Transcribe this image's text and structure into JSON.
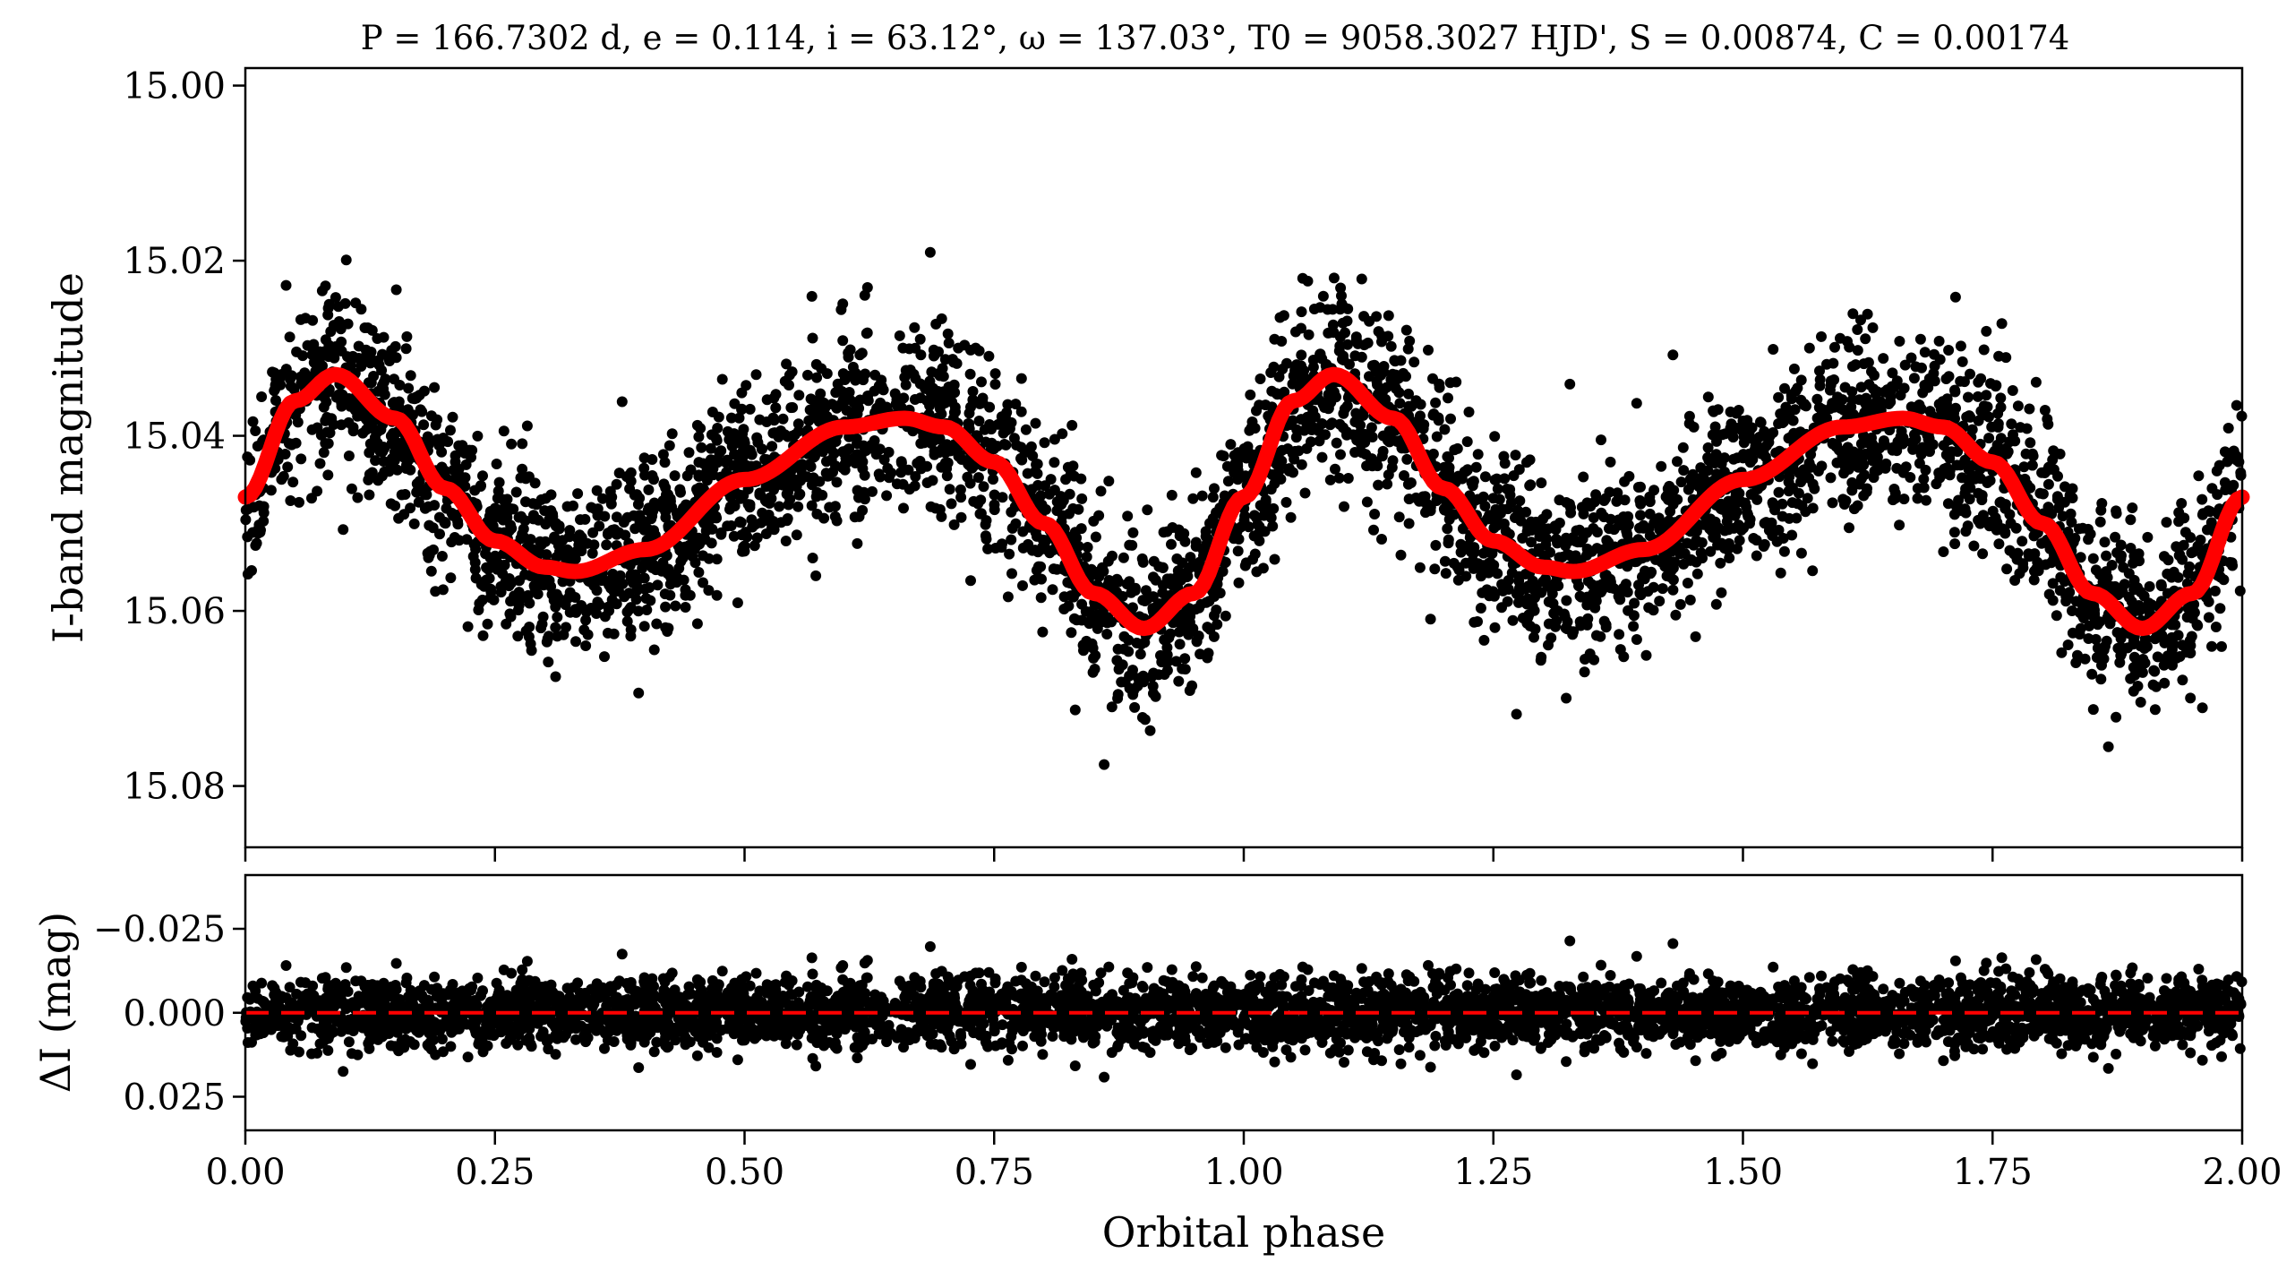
{
  "chart_data": [
    {
      "type": "scatter",
      "panel": "top",
      "title": "P = 166.7302 d, e = 0.114, i = 63.12°, ω = 137.03°, T0 = 9058.3027 HJD', S = 0.00874, C = 0.00174",
      "xlabel": "",
      "ylabel": "I-band magnitude",
      "xlim": [
        0.0,
        2.0
      ],
      "ylim": [
        15.087,
        14.998
      ],
      "y_inverted": true,
      "xticks": [
        0.0,
        0.25,
        0.5,
        0.75,
        1.0,
        1.25,
        1.5,
        1.75,
        2.0
      ],
      "yticks": [
        "15.00",
        "15.02",
        "15.04",
        "15.06",
        "15.08"
      ],
      "grid": false,
      "point_color": "#000000",
      "model_color": "#ff0000",
      "model_curve": {
        "x": [
          0.0,
          0.05,
          0.09,
          0.15,
          0.2,
          0.25,
          0.3,
          0.33,
          0.4,
          0.5,
          0.6,
          0.66,
          0.7,
          0.75,
          0.8,
          0.85,
          0.9,
          0.95,
          1.0,
          1.05,
          1.09,
          1.15,
          1.2,
          1.25,
          1.3,
          1.33,
          1.4,
          1.5,
          1.6,
          1.66,
          1.7,
          1.75,
          1.8,
          1.85,
          1.9,
          1.95,
          2.0
        ],
        "y": [
          15.047,
          15.036,
          15.033,
          15.038,
          15.046,
          15.052,
          15.055,
          15.0555,
          15.053,
          15.045,
          15.039,
          15.038,
          15.039,
          15.043,
          15.05,
          15.058,
          15.062,
          15.058,
          15.047,
          15.036,
          15.033,
          15.038,
          15.046,
          15.052,
          15.055,
          15.0555,
          15.053,
          15.045,
          15.039,
          15.038,
          15.039,
          15.043,
          15.05,
          15.058,
          15.062,
          15.058,
          15.047
        ]
      },
      "scatter_sigma": 0.006,
      "n_points_approx": 9000
    },
    {
      "type": "scatter",
      "panel": "bottom",
      "xlabel": "Orbital phase",
      "ylabel": "ΔI (mag)",
      "xlim": [
        0.0,
        2.0
      ],
      "ylim": [
        0.035,
        -0.041
      ],
      "y_inverted": true,
      "xticks": [
        "0.00",
        "0.25",
        "0.50",
        "0.75",
        "1.00",
        "1.25",
        "1.50",
        "1.75",
        "2.00"
      ],
      "yticks": [
        "−0.025",
        "0.000",
        "0.025"
      ],
      "reference_line": {
        "y": 0.0,
        "style": "dashed",
        "color": "#ff0000"
      },
      "grid": false,
      "point_color": "#000000",
      "scatter_sigma": 0.006,
      "n_points_approx": 9000
    }
  ]
}
